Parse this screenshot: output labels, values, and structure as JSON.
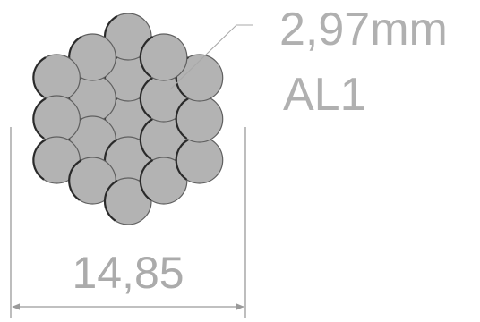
{
  "wire_label": {
    "diameter": "2,97mm",
    "material": "AL1"
  },
  "dimension": {
    "overall_diameter": "14,85"
  }
}
